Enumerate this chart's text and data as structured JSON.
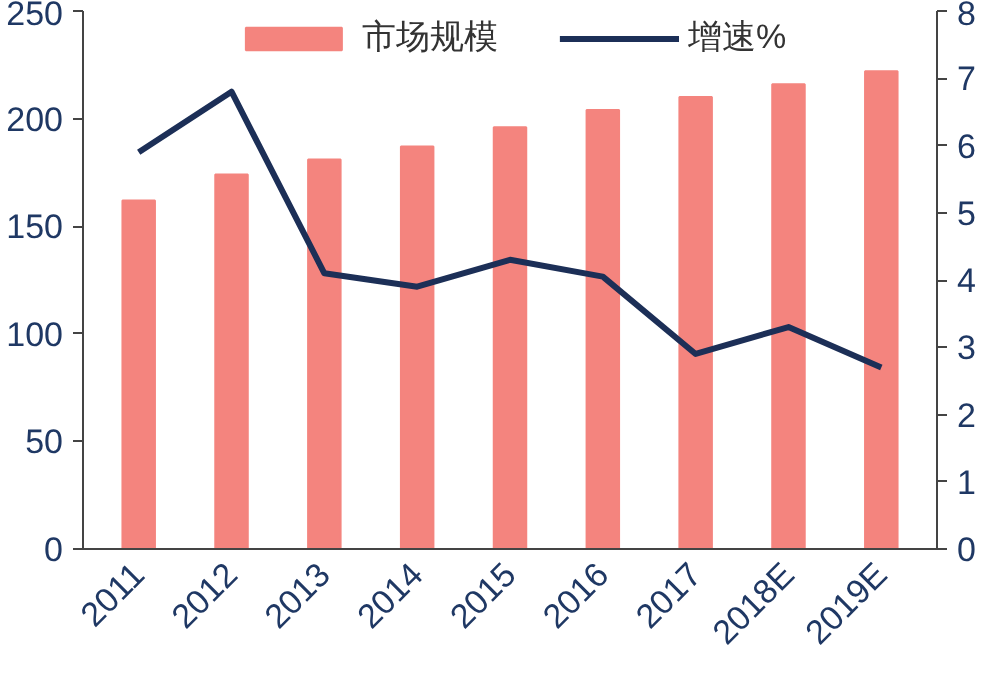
{
  "chart_data": {
    "type": "bar",
    "categories": [
      "2011",
      "2012",
      "2013",
      "2014",
      "2015",
      "2016",
      "2017",
      "2018E",
      "2019E"
    ],
    "series": [
      {
        "name": "市场规模",
        "color": "#f4847e",
        "values": [
          162,
          174,
          181,
          187,
          196,
          204,
          210,
          216,
          222
        ]
      },
      {
        "name": "增速%",
        "type": "line",
        "axis": "y2",
        "color": "#1c2f57",
        "values": [
          5.9,
          6.8,
          4.1,
          3.9,
          4.3,
          4.05,
          2.9,
          3.3,
          2.7
        ]
      }
    ],
    "ylim": [
      0,
      250
    ],
    "yticks": [
      0,
      50,
      100,
      150,
      200,
      250
    ],
    "y2lim": [
      0,
      8
    ],
    "y2ticks": [
      0,
      1,
      2,
      3,
      4,
      5,
      6,
      7,
      8
    ],
    "grid": false,
    "legend": "top",
    "marker": "none",
    "line_style": "solid"
  }
}
